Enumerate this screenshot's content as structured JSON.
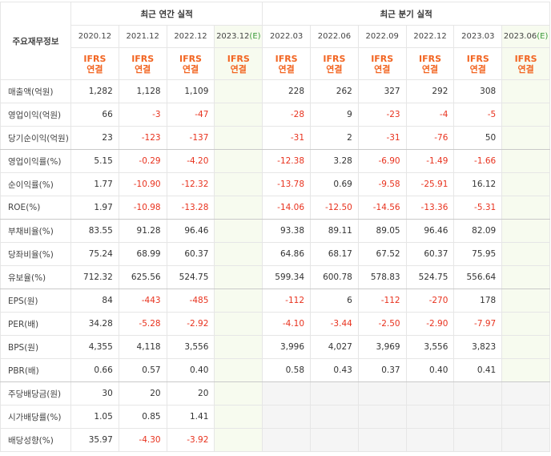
{
  "table": {
    "corner": "주요재무정보",
    "groups": [
      {
        "title": "최근 연간 실적",
        "span": 4
      },
      {
        "title": "최근 분기 실적",
        "span": 6
      }
    ],
    "periods": [
      {
        "label": "2020.12"
      },
      {
        "label": "2021.12"
      },
      {
        "label": "2022.12"
      },
      {
        "label": "2023.12",
        "estimate": "(E)"
      },
      {
        "label": "2022.03"
      },
      {
        "label": "2022.06"
      },
      {
        "label": "2022.09"
      },
      {
        "label": "2022.12"
      },
      {
        "label": "2023.03"
      },
      {
        "label": "2023.06",
        "estimate": "(E)"
      }
    ],
    "basis": [
      "IFRS",
      "연결"
    ],
    "rows": [
      {
        "label": "매출액(억원)",
        "values": [
          "1,282",
          "1,128",
          "1,109",
          null,
          "228",
          "262",
          "327",
          "292",
          "308",
          null
        ]
      },
      {
        "label": "영업이익(억원)",
        "values": [
          "66",
          "-3",
          "-47",
          null,
          "-28",
          "9",
          "-23",
          "-4",
          "-5",
          null
        ]
      },
      {
        "label": "당기순이익(억원)",
        "values": [
          "23",
          "-123",
          "-137",
          null,
          "-31",
          "2",
          "-31",
          "-76",
          "50",
          null
        ]
      },
      {
        "label": "영업이익률(%)",
        "values": [
          "5.15",
          "-0.29",
          "-4.20",
          null,
          "-12.38",
          "3.28",
          "-6.90",
          "-1.49",
          "-1.66",
          null
        ]
      },
      {
        "label": "순이익률(%)",
        "values": [
          "1.77",
          "-10.90",
          "-12.32",
          null,
          "-13.78",
          "0.69",
          "-9.58",
          "-25.91",
          "16.12",
          null
        ]
      },
      {
        "label": "ROE(%)",
        "values": [
          "1.97",
          "-10.98",
          "-13.28",
          null,
          "-14.06",
          "-12.50",
          "-14.56",
          "-13.36",
          "-5.31",
          null
        ]
      },
      {
        "label": "부채비율(%)",
        "values": [
          "83.55",
          "91.28",
          "96.46",
          null,
          "93.38",
          "89.11",
          "89.05",
          "96.46",
          "82.09",
          null
        ]
      },
      {
        "label": "당좌비율(%)",
        "values": [
          "75.24",
          "68.99",
          "60.37",
          null,
          "64.86",
          "68.17",
          "67.52",
          "60.37",
          "75.95",
          null
        ]
      },
      {
        "label": "유보율(%)",
        "values": [
          "712.32",
          "625.56",
          "524.75",
          null,
          "599.34",
          "600.78",
          "578.83",
          "524.75",
          "556.64",
          null
        ]
      },
      {
        "label": "EPS(원)",
        "values": [
          "84",
          "-443",
          "-485",
          null,
          "-112",
          "6",
          "-112",
          "-270",
          "178",
          null
        ]
      },
      {
        "label": "PER(배)",
        "values": [
          "34.28",
          "-5.28",
          "-2.92",
          null,
          "-4.10",
          "-3.44",
          "-2.50",
          "-2.90",
          "-7.97",
          null
        ]
      },
      {
        "label": "BPS(원)",
        "values": [
          "4,355",
          "4,118",
          "3,556",
          null,
          "3,996",
          "4,027",
          "3,969",
          "3,556",
          "3,823",
          null
        ]
      },
      {
        "label": "PBR(배)",
        "values": [
          "0.66",
          "0.57",
          "0.40",
          null,
          "0.58",
          "0.43",
          "0.37",
          "0.40",
          "0.41",
          null
        ]
      },
      {
        "label": "주당배당금(원)",
        "values": [
          "30",
          "20",
          "20",
          null
        ],
        "quarterly_blank": true
      },
      {
        "label": "시가배당률(%)",
        "values": [
          "1.05",
          "0.85",
          "1.41",
          null
        ],
        "quarterly_blank": true
      },
      {
        "label": "배당성향(%)",
        "values": [
          "35.97",
          "-4.30",
          "-3.92",
          null
        ],
        "quarterly_blank": true
      }
    ],
    "group_ends": [
      2,
      5,
      8,
      12
    ]
  }
}
